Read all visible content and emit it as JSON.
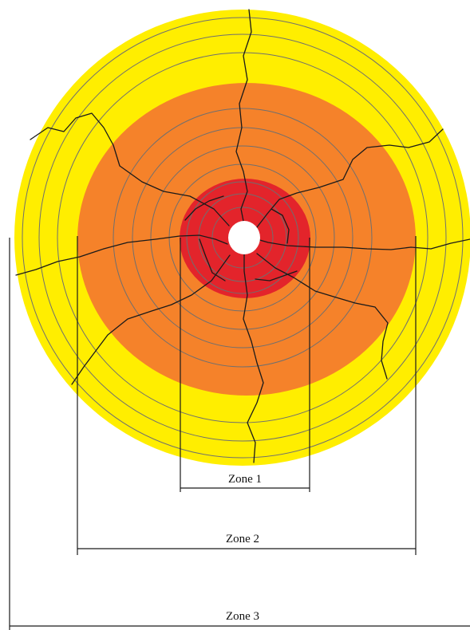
{
  "zones": [
    {
      "id": "zone-1",
      "label": "Zone 1"
    },
    {
      "id": "zone-2",
      "label": "Zone 2"
    },
    {
      "id": "zone-3",
      "label": "Zone 3"
    }
  ],
  "colors": {
    "zone1": "#e3242b",
    "zone2": "#f5822a",
    "zone3": "#ffee00",
    "borehole": "#ffffff",
    "rings": "#6f6f6f",
    "cracks": "#1a1a1a"
  }
}
